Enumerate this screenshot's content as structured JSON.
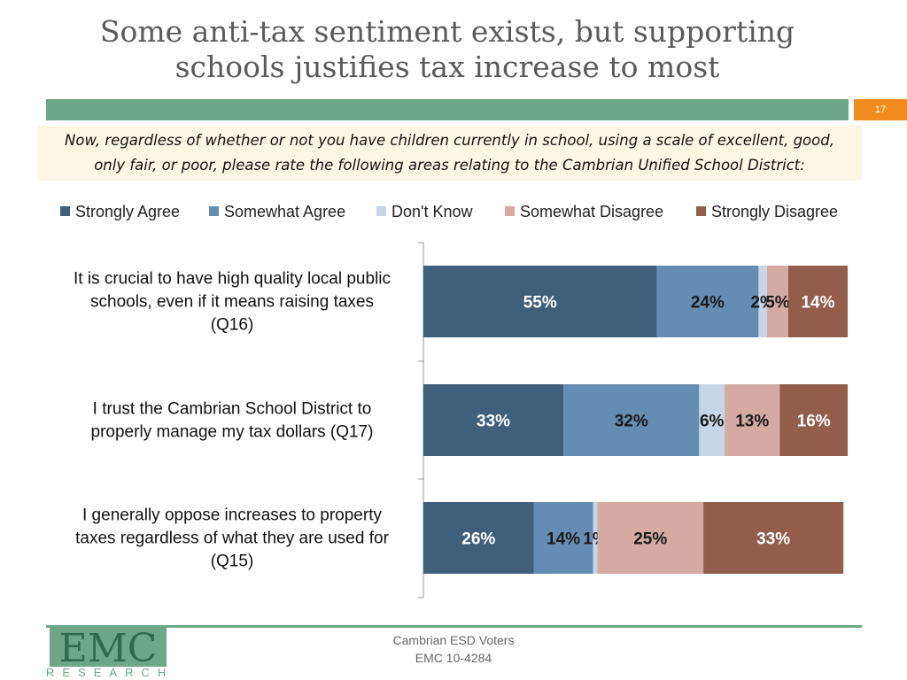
{
  "title": "Some anti-tax sentiment exists, but supporting schools justifies tax increase to most",
  "title_lines": [
    "Some anti-tax sentiment exists, but supporting",
    "schools justifies tax increase to most"
  ],
  "page_number": "17",
  "question": "Now, regardless of whether or not you have children currently in school, using a scale of excellent, good, only fair, or poor, please rate the following areas relating to the Cambrian Unified School District:",
  "footer": {
    "line1": "Cambrian ESD Voters",
    "line2": "EMC 10-4284",
    "logo_text": "EMC",
    "logo_subtext": "RESEARCH"
  },
  "colors": {
    "title_bar": "#6ea788",
    "page_badge": "#f28c1e",
    "question_bg": "#fcf7e4"
  },
  "chart_data": {
    "type": "bar",
    "orientation": "horizontal",
    "stacked": true,
    "legend_position": "top",
    "xlim": [
      0,
      100
    ],
    "categories": [
      [
        "It is crucial to have high quality local public",
        "schools, even if it means raising taxes",
        "(Q16)"
      ],
      [
        "I trust the Cambrian School District to",
        "properly manage my tax dollars (Q17)"
      ],
      [
        "I generally oppose increases to property",
        "taxes regardless of what they are used for",
        "(Q15)"
      ]
    ],
    "series": [
      {
        "name": "Strongly Agree",
        "color": "#3f5f7b",
        "label_color": "#ffffff",
        "values": [
          55,
          33,
          26
        ],
        "labels": [
          "55%",
          "33%",
          "26%"
        ]
      },
      {
        "name": "Somewhat Agree",
        "color": "#658cb2",
        "label_color": "#1a1a1a",
        "values": [
          24,
          32,
          14
        ],
        "labels": [
          "24%",
          "32%",
          "14%"
        ]
      },
      {
        "name": "Don't Know",
        "color": "#c7d6e6",
        "label_color": "#1a1a1a",
        "values": [
          2,
          6,
          1
        ],
        "labels": [
          "2%",
          "6%",
          "1%"
        ]
      },
      {
        "name": "Somewhat Disagree",
        "color": "#d4aaa2",
        "label_color": "#1a1a1a",
        "values": [
          5,
          13,
          25
        ],
        "labels": [
          "5%",
          "13%",
          "25%"
        ]
      },
      {
        "name": "Strongly Disagree",
        "color": "#925d4b",
        "label_color": "#ffffff",
        "values": [
          14,
          16,
          33
        ],
        "labels": [
          "14%",
          "16%",
          "33%"
        ]
      }
    ]
  }
}
